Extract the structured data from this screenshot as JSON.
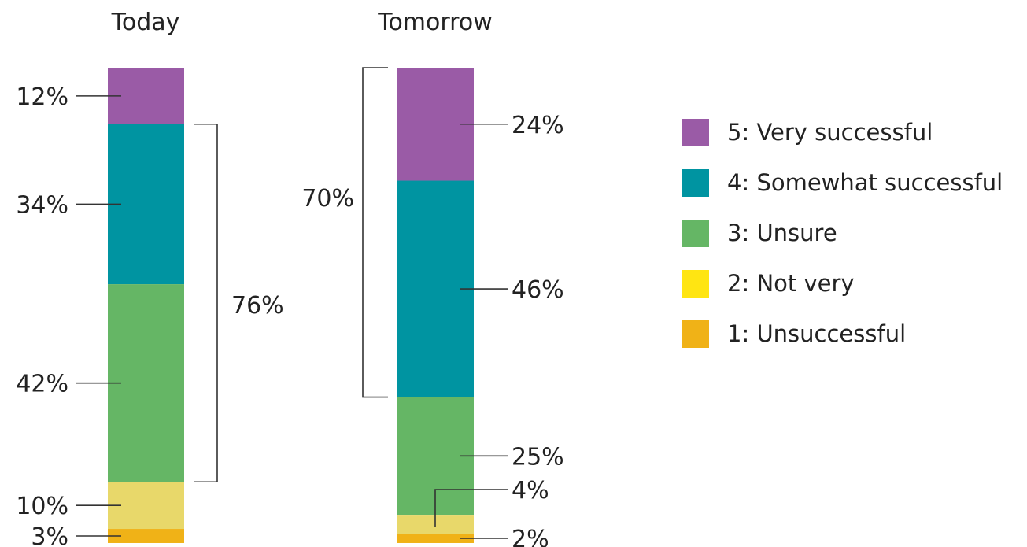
{
  "chart_data": {
    "type": "bar",
    "stacked": true,
    "categories": [
      "Today",
      "Tomorrow"
    ],
    "series": [
      {
        "name": "5: Very successful",
        "color": "#9a5ba6",
        "values": [
          12,
          24
        ]
      },
      {
        "name": "4: Somewhat successful",
        "color": "#0094a1",
        "values": [
          34,
          46
        ]
      },
      {
        "name": "3: Unsure",
        "color": "#65b665",
        "values": [
          42,
          25
        ]
      },
      {
        "name": "2: Not very",
        "color": "#e8d86a",
        "values": [
          10,
          4
        ]
      },
      {
        "name": "1: Unsuccessful",
        "color": "#f0b217",
        "values": [
          3,
          2
        ]
      }
    ],
    "value_labels": [
      [
        "12%",
        "24%"
      ],
      [
        "34%",
        "46%"
      ],
      [
        "42%",
        "25%"
      ],
      [
        "10%",
        "4%"
      ],
      [
        "3%",
        "2%"
      ]
    ],
    "brackets": [
      {
        "category": "Today",
        "label": "76%",
        "spans": [
          "4: Somewhat successful",
          "3: Unsure"
        ]
      },
      {
        "category": "Tomorrow",
        "label": "70%",
        "spans": [
          "5: Very successful",
          "4: Somewhat successful"
        ]
      }
    ],
    "legend": {
      "position": "right",
      "entries": [
        {
          "label": "5: Very successful",
          "color": "#9a5ba6"
        },
        {
          "label": "4: Somewhat successful",
          "color": "#0094a1"
        },
        {
          "label": "3: Unsure",
          "color": "#65b665"
        },
        {
          "label": "2: Not very",
          "color": "#ffe512"
        },
        {
          "label": "1: Unsuccessful",
          "color": "#f0b217"
        }
      ]
    },
    "grid": false
  }
}
